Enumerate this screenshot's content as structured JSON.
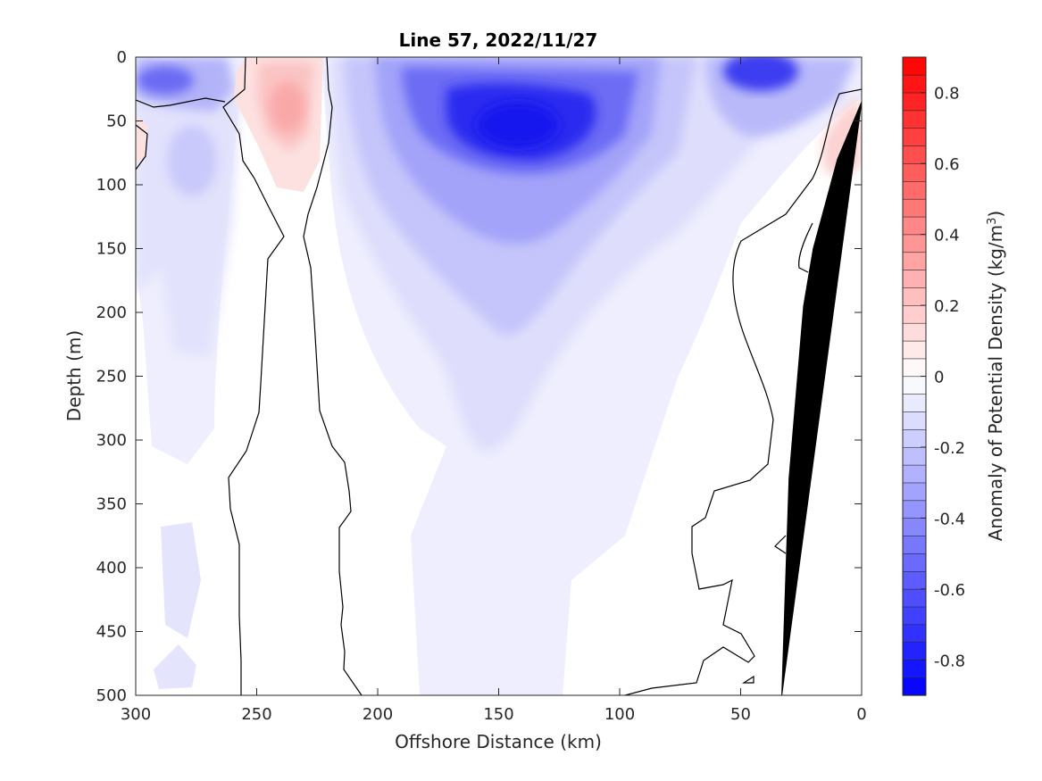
{
  "chart_data": {
    "type": "heatmap",
    "subtype": "filled-contour-section",
    "title": "Line 57, 2022/11/27",
    "xlabel": "Offshore Distance (km)",
    "ylabel": "Depth (m)",
    "colorbar_label": "Anomaly of Potential Density (kg/m",
    "colorbar_label_sup": "3",
    "colorbar_label_close": ")",
    "xlim": [
      300,
      0
    ],
    "ylim": [
      0,
      500
    ],
    "x_reversed": true,
    "y_reversed": true,
    "xticks": [
      300,
      250,
      200,
      150,
      100,
      50,
      0
    ],
    "xtick_labels": [
      "300",
      "250",
      "200",
      "150",
      "100",
      "50",
      "0"
    ],
    "yticks": [
      0,
      50,
      100,
      150,
      200,
      250,
      300,
      350,
      400,
      450,
      500
    ],
    "ytick_labels": [
      "0",
      "50",
      "100",
      "150",
      "200",
      "250",
      "300",
      "350",
      "400",
      "450",
      "500"
    ],
    "colorbar": {
      "range": [
        -0.9,
        0.9
      ],
      "levels_step": 0.05,
      "ticks": [
        0.8,
        0.6,
        0.4,
        0.2,
        0,
        -0.2,
        -0.4,
        -0.6,
        -0.8
      ],
      "tick_labels": [
        "0.8",
        "0.6",
        "0.4",
        "0.2",
        "0",
        "-0.2",
        "-0.4",
        "-0.6",
        "-0.8"
      ],
      "colormap": "blue-white-red diverging",
      "neg_color": "#0000ff",
      "pos_color": "#ff0000",
      "mid_color": "#ffffff"
    },
    "bathymetry_color": "#000000",
    "zero_contour_color": "#000000",
    "field_features": [
      {
        "kind": "negative-max",
        "x_km": 145,
        "depth_m": 45,
        "value": -0.85
      },
      {
        "kind": "negative",
        "x_km": 140,
        "depth_m": 70,
        "value": -0.75
      },
      {
        "kind": "negative",
        "x_km": 40,
        "depth_m": 10,
        "value": -0.7
      },
      {
        "kind": "negative",
        "x_km": 290,
        "depth_m": 20,
        "value": -0.45
      },
      {
        "kind": "negative",
        "x_km": 275,
        "depth_m": 80,
        "value": -0.2
      },
      {
        "kind": "positive-max",
        "x_km": 237,
        "depth_m": 40,
        "value": 0.25
      },
      {
        "kind": "positive",
        "x_km": 10,
        "depth_m": 65,
        "value": 0.12
      }
    ],
    "bathymetry": [
      {
        "x_km": 0,
        "depth_m": 35
      },
      {
        "x_km": 10,
        "depth_m": 80
      },
      {
        "x_km": 20,
        "depth_m": 150
      },
      {
        "x_km": 24,
        "depth_m": 195
      },
      {
        "x_km": 30,
        "depth_m": 330
      },
      {
        "x_km": 33,
        "depth_m": 500
      }
    ]
  }
}
